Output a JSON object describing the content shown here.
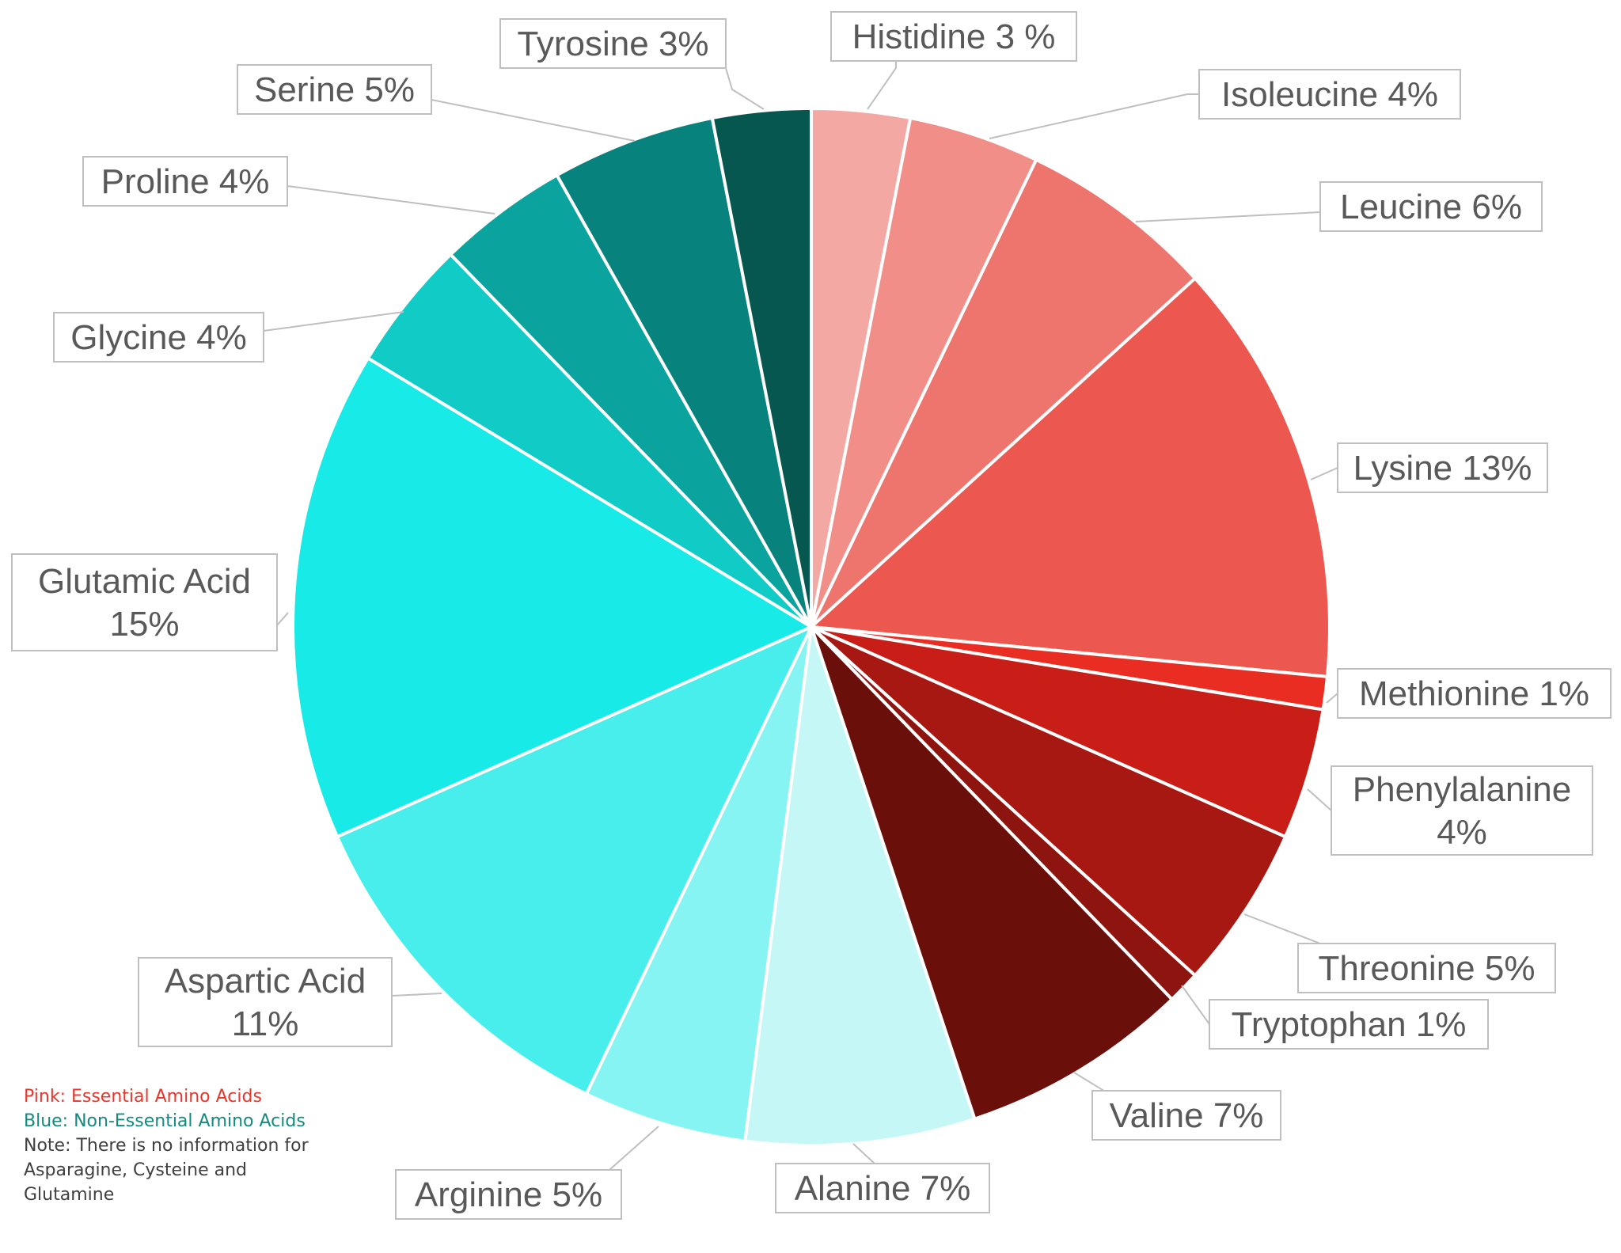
{
  "chart_data": {
    "type": "pie",
    "title": "",
    "slices": [
      {
        "name": "Histidine",
        "value": 3,
        "label": [
          "Histidine 3 %"
        ],
        "color": "#f4a8a4"
      },
      {
        "name": "Isoleucine",
        "value": 4,
        "label": [
          "Isoleucine 4%"
        ],
        "color": "#f18e88"
      },
      {
        "name": "Leucine",
        "value": 6,
        "label": [
          "Leucine 6%"
        ],
        "color": "#ee756e"
      },
      {
        "name": "Lysine",
        "value": 13,
        "label": [
          "Lysine 13%"
        ],
        "color": "#ec5850"
      },
      {
        "name": "Methionine",
        "value": 1,
        "label": [
          "Methionine 1%"
        ],
        "color": "#e92d23"
      },
      {
        "name": "Phenylalanine",
        "value": 4,
        "label": [
          "Phenylalanine",
          "4%"
        ],
        "color": "#c81e17"
      },
      {
        "name": "Threonine",
        "value": 5,
        "label": [
          "Threonine 5%"
        ],
        "color": "#a81812"
      },
      {
        "name": "Tryptophan",
        "value": 1,
        "label": [
          "Tryptophan 1%"
        ],
        "color": "#8d140f"
      },
      {
        "name": "Valine",
        "value": 7,
        "label": [
          "Valine 7%"
        ],
        "color": "#6b0f0b"
      },
      {
        "name": "Alanine",
        "value": 7,
        "label": [
          "Alanine 7%"
        ],
        "color": "#c5f7f7"
      },
      {
        "name": "Arginine",
        "value": 5,
        "label": [
          "Arginine 5%"
        ],
        "color": "#86f4f2"
      },
      {
        "name": "Aspartic Acid",
        "value": 11,
        "label": [
          "Aspartic Acid",
          "11%"
        ],
        "color": "#47eeec"
      },
      {
        "name": "Glutamic Acid",
        "value": 15,
        "label": [
          "Glutamic Acid",
          "15%"
        ],
        "color": "#18ebe7"
      },
      {
        "name": "Glycine",
        "value": 4,
        "label": [
          "Glycine 4%"
        ],
        "color": "#10cbc6"
      },
      {
        "name": "Proline",
        "value": 4,
        "label": [
          "Proline 4%"
        ],
        "color": "#0ba39e"
      },
      {
        "name": "Serine",
        "value": 5,
        "label": [
          "Serine 5%"
        ],
        "color": "#08827c"
      },
      {
        "name": "Tyrosine",
        "value": 3,
        "label": [
          "Tyrosine 3%"
        ],
        "color": "#075751"
      }
    ]
  },
  "notes": {
    "essential": "Pink: Essential Amino Acids",
    "non_essential": "Blue: Non-Essential Amino Acids",
    "missing": "Note: There is no information for Asparagine, Cysteine and Glutamine"
  }
}
